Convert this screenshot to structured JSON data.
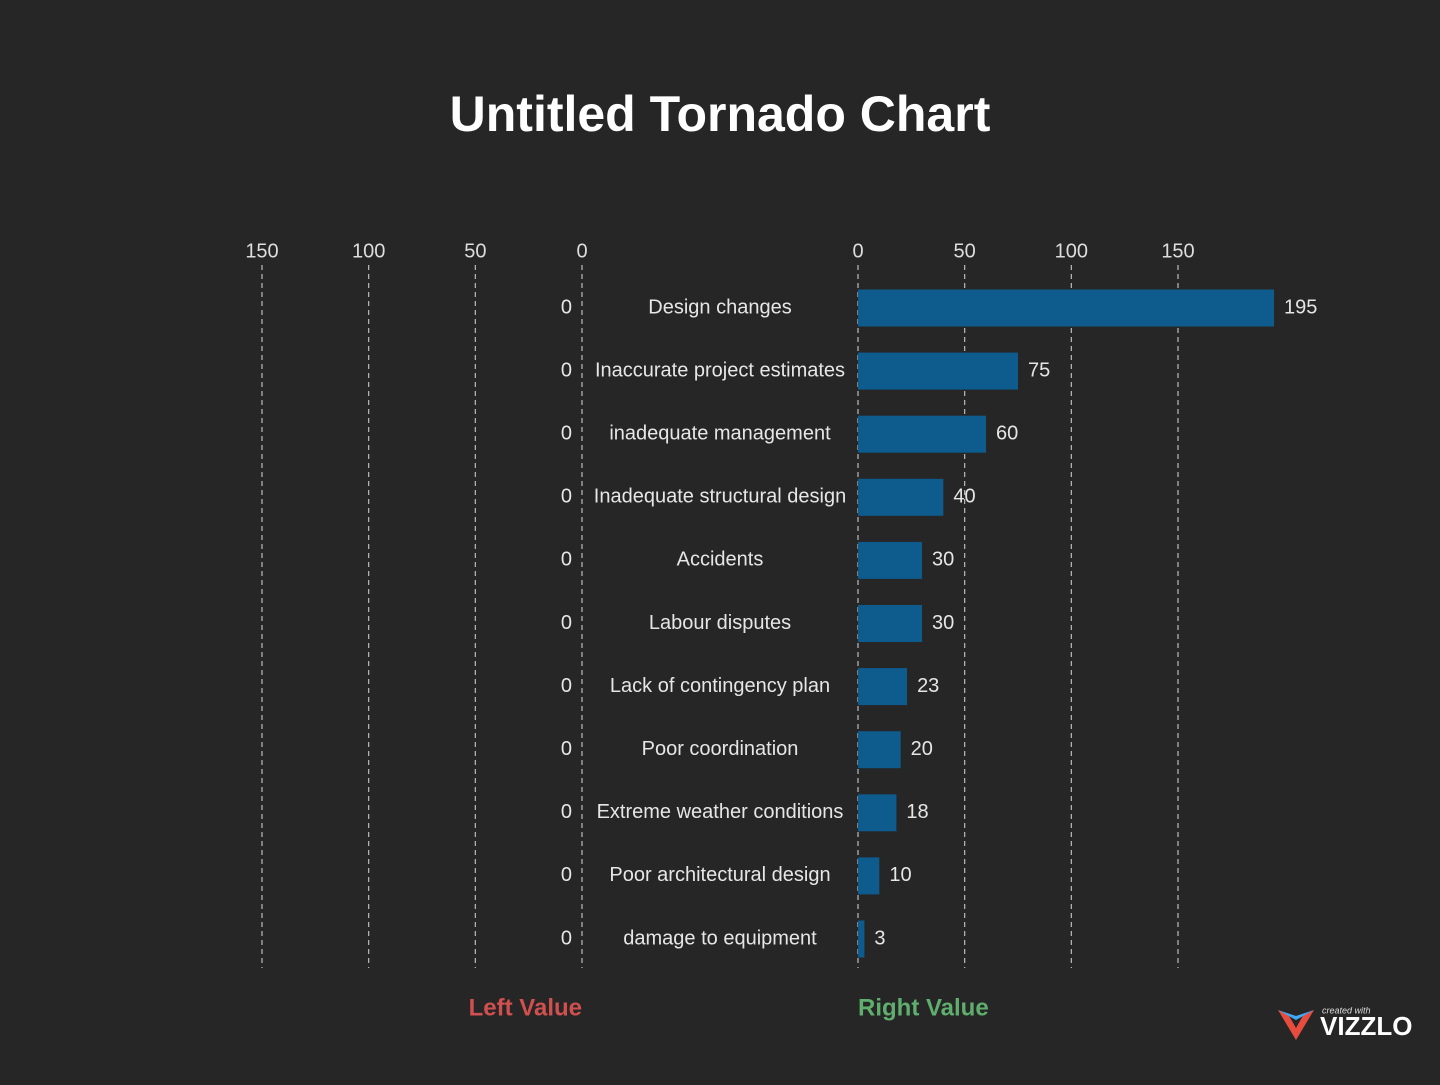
{
  "chart_data": {
    "type": "tornado",
    "title": "Untitled Tornado Chart",
    "categories": [
      "Design changes",
      "Inaccurate project estimates",
      "inadequate management",
      "Inadequate structural design",
      "Accidents",
      "Labour disputes",
      "Lack of contingency plan",
      "Poor coordination",
      "Extreme weather conditions",
      "Poor architectural design",
      "damage to equipment"
    ],
    "series": [
      {
        "name": "Left Value",
        "color": "#d0504f",
        "side": "left",
        "values": [
          0,
          0,
          0,
          0,
          0,
          0,
          0,
          0,
          0,
          0,
          0
        ]
      },
      {
        "name": "Right Value",
        "color": "#5fae6e",
        "side": "right",
        "values": [
          195,
          75,
          60,
          40,
          30,
          30,
          23,
          20,
          18,
          10,
          3
        ]
      }
    ],
    "bar_color": "#0e5b8e",
    "left_axis": {
      "xlim": [
        0,
        150
      ],
      "xticks": [
        0,
        50,
        100,
        150
      ]
    },
    "right_axis": {
      "xlim": [
        0,
        150
      ],
      "xticks": [
        0,
        50,
        100,
        150
      ]
    },
    "grid": true
  },
  "footer": {
    "created_with": "created with",
    "brand": "VIZZLO"
  }
}
